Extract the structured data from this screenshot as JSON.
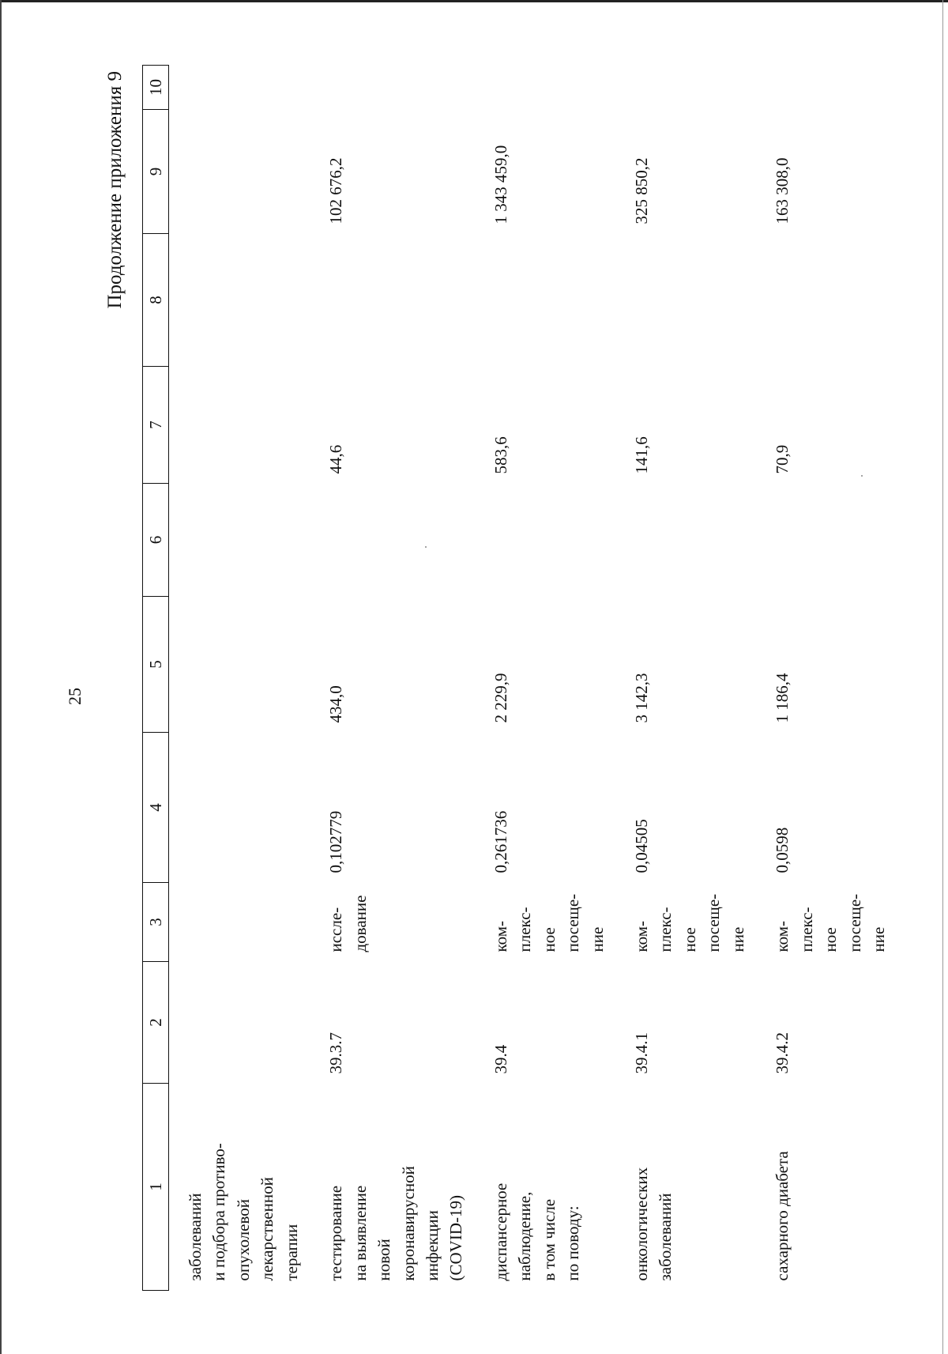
{
  "page": {
    "page_number": "25",
    "continuation_label": "Продолжение приложения 9"
  },
  "table": {
    "column_headers": [
      "1",
      "2",
      "3",
      "4",
      "5",
      "6",
      "7",
      "8",
      "9",
      "10"
    ],
    "rows": [
      {
        "name": "заболеваний\nи подбора противо-\nопухолевой\nлекарственной\nтерапии",
        "code": "",
        "unit": "",
        "col4": "",
        "col5": "",
        "col6": "",
        "col7": "",
        "col8": "",
        "col9": "",
        "col10": ""
      },
      {
        "name": "тестирование\nна выявление\nновой\nкоронавирусной\nинфекции\n(COVID-19)",
        "code": "39.3.7",
        "unit": "иссле-\nдование",
        "col4": "0,102779",
        "col5": "434,0",
        "col6": "",
        "col7": "44,6",
        "col8": "",
        "col9": "102 676,2",
        "col10": ""
      },
      {
        "name": "диспансерное\nнаблюдение,\nв том числе\nпо поводу:",
        "code": "39.4",
        "unit": "ком-\nплекс-\nное\nпосеще-\nние",
        "col4": "0,261736",
        "col5": "2 229,9",
        "col6": "",
        "col7": "583,6",
        "col8": "",
        "col9": "1 343 459,0",
        "col10": ""
      },
      {
        "name": "онкологических\nзаболеваний",
        "code": "39.4.1",
        "unit": "ком-\nплекс-\nное\nпосеще-\nние",
        "col4": "0,04505",
        "col5": "3 142,3",
        "col6": "",
        "col7": "141,6",
        "col8": "",
        "col9": "325 850,2",
        "col10": ""
      },
      {
        "name": "сахарного диабета",
        "code": "39.4.2",
        "unit": "ком-\nплекс-\nное\nпосеще-\nние",
        "col4": "0,0598",
        "col5": "1 186,4",
        "col6": "",
        "col7": "70,9",
        "col8": "",
        "col9": "163 308,0",
        "col10": ""
      }
    ]
  }
}
